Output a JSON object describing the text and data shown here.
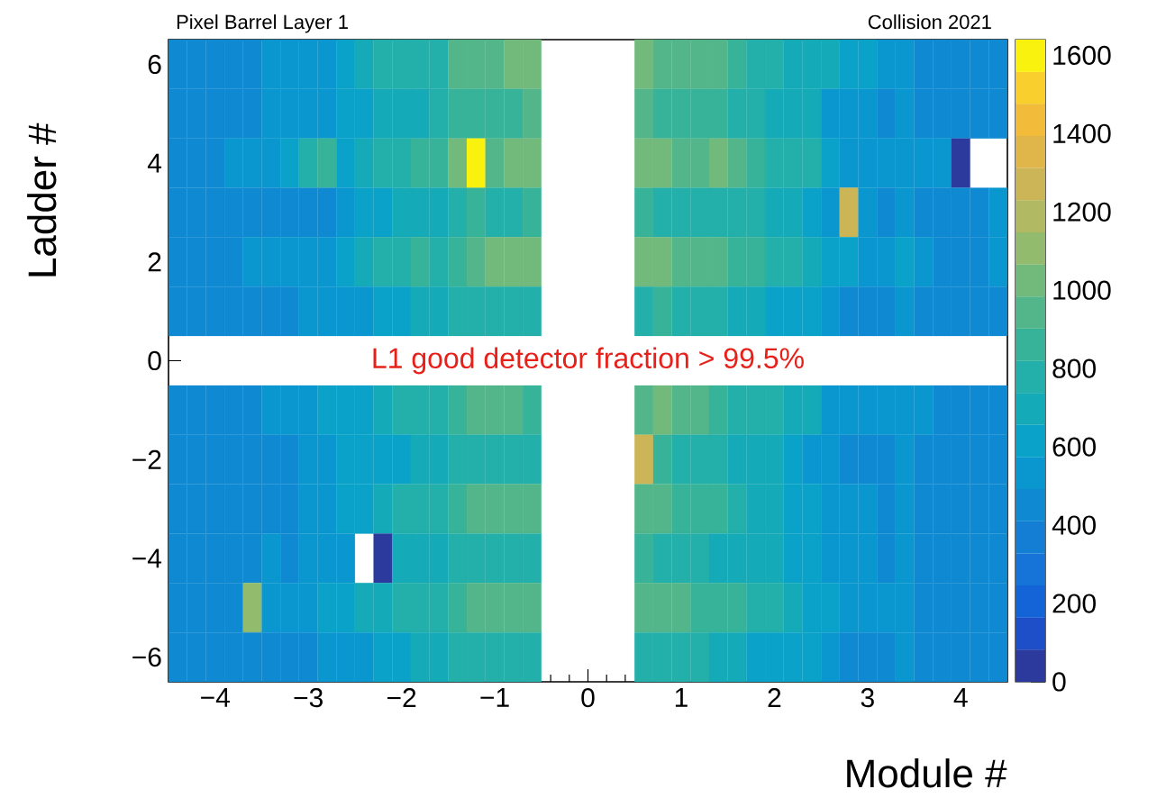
{
  "chart_data": {
    "type": "heatmap",
    "title": "Pixel Barrel Layer 1",
    "subtitle": "Collision 2021",
    "xlabel": "Module #",
    "ylabel": "Ladder #",
    "annotations": [
      "L1 good detector fraction > 99.5%"
    ],
    "categories": [
      null,
      null,
      "−4",
      null,
      null,
      null,
      null,
      "−3",
      null,
      null,
      null,
      null,
      "−2",
      null,
      null,
      null,
      null,
      "−1",
      null,
      null,
      null,
      null,
      "0",
      null,
      null,
      null,
      null,
      "1",
      null,
      null,
      null,
      null,
      "2",
      null,
      null,
      null,
      null,
      "3",
      null,
      null,
      null,
      null,
      "4",
      null,
      null
    ],
    "y_categories": [
      "6",
      null,
      "4",
      null,
      "2",
      null,
      "0",
      null,
      "−2",
      null,
      "−4",
      null,
      "−6"
    ],
    "clim": [
      0,
      1640
    ],
    "cticks": [
      0,
      200,
      400,
      600,
      800,
      1000,
      1200,
      1400,
      1600
    ],
    "cells": [
      [
        460,
        450,
        470,
        470,
        480,
        550,
        500,
        520,
        560,
        620,
        660,
        740,
        800,
        780,
        760,
        920,
        960,
        940,
        1000,
        990,
        null,
        null,
        null,
        null,
        null,
        1030,
        980,
        970,
        980,
        960,
        870,
        800,
        760,
        720,
        680,
        670,
        640,
        600,
        560,
        520,
        490,
        490,
        480,
        480,
        475
      ],
      [
        480,
        440,
        450,
        440,
        480,
        550,
        510,
        520,
        510,
        580,
        650,
        700,
        680,
        700,
        770,
        830,
        880,
        880,
        860,
        920,
        null,
        null,
        null,
        null,
        null,
        910,
        860,
        880,
        880,
        880,
        800,
        760,
        720,
        690,
        670,
        560,
        540,
        500,
        490,
        530,
        480,
        460,
        440,
        460,
        450
      ],
      [
        450,
        450,
        480,
        500,
        520,
        560,
        600,
        740,
        820,
        580,
        730,
        760,
        810,
        840,
        890,
        1000,
        1620,
        980,
        1000,
        1040,
        null,
        null,
        null,
        null,
        null,
        1030,
        1050,
        980,
        970,
        1020,
        910,
        820,
        780,
        760,
        740,
        600,
        570,
        560,
        570,
        570,
        520,
        530,
        30,
        null,
        null
      ],
      [
        430,
        410,
        440,
        430,
        470,
        450,
        450,
        470,
        490,
        540,
        590,
        640,
        680,
        700,
        730,
        810,
        820,
        790,
        800,
        850,
        null,
        null,
        null,
        null,
        null,
        860,
        810,
        800,
        780,
        760,
        780,
        750,
        710,
        680,
        650,
        570,
        1240,
        520,
        480,
        550,
        480,
        440,
        470,
        480,
        510
      ],
      [
        430,
        450,
        440,
        460,
        500,
        510,
        530,
        550,
        570,
        600,
        670,
        740,
        800,
        820,
        810,
        890,
        960,
        1010,
        1020,
        1030,
        null,
        null,
        null,
        null,
        null,
        1000,
        1030,
        960,
        930,
        920,
        880,
        830,
        770,
        740,
        710,
        630,
        590,
        560,
        560,
        620,
        500,
        490,
        470,
        460,
        510
      ],
      [
        440,
        430,
        450,
        460,
        460,
        440,
        480,
        500,
        520,
        560,
        550,
        610,
        650,
        670,
        670,
        760,
        810,
        790,
        760,
        760,
        null,
        null,
        null,
        null,
        null,
        790,
        840,
        800,
        770,
        760,
        720,
        690,
        640,
        600,
        590,
        520,
        480,
        480,
        490,
        530,
        430,
        440,
        430,
        430,
        450
      ],
      [
        null,
        null,
        null,
        null,
        null,
        null,
        null,
        null,
        null,
        null,
        null,
        null,
        null,
        null,
        null,
        null,
        null,
        null,
        null,
        null,
        null,
        null,
        null,
        null,
        null,
        null,
        null,
        null,
        null,
        null,
        null,
        null,
        null,
        null,
        null,
        null,
        null,
        null,
        null,
        null,
        null,
        null,
        null,
        null,
        null
      ],
      [
        460,
        440,
        430,
        440,
        480,
        520,
        500,
        540,
        580,
        630,
        640,
        700,
        760,
        780,
        780,
        870,
        920,
        980,
        960,
        900,
        null,
        null,
        null,
        null,
        null,
        970,
        1000,
        950,
        920,
        870,
        810,
        770,
        740,
        720,
        680,
        570,
        550,
        520,
        500,
        540,
        500,
        470,
        460,
        450,
        490
      ],
      [
        440,
        460,
        430,
        420,
        440,
        480,
        490,
        500,
        520,
        580,
        580,
        630,
        650,
        690,
        720,
        750,
        780,
        780,
        780,
        760,
        null,
        null,
        null,
        null,
        null,
        1300,
        820,
        800,
        780,
        740,
        730,
        700,
        680,
        640,
        560,
        520,
        470,
        460,
        460,
        520,
        440,
        440,
        430,
        420,
        440
      ],
      [
        420,
        440,
        430,
        440,
        480,
        470,
        480,
        500,
        540,
        590,
        610,
        690,
        740,
        760,
        770,
        860,
        920,
        980,
        970,
        930,
        null,
        null,
        null,
        null,
        null,
        910,
        950,
        900,
        860,
        860,
        770,
        720,
        680,
        640,
        600,
        560,
        520,
        500,
        480,
        530,
        440,
        430,
        440,
        430,
        430
      ],
      [
        430,
        430,
        440,
        440,
        480,
        510,
        490,
        520,
        540,
        520,
        null,
        30,
        660,
        680,
        680,
        800,
        810,
        800,
        790,
        760,
        null,
        null,
        null,
        null,
        null,
        860,
        790,
        780,
        760,
        720,
        730,
        690,
        660,
        630,
        600,
        560,
        520,
        500,
        490,
        520,
        460,
        440,
        460,
        470,
        450
      ],
      [
        460,
        440,
        430,
        440,
        1120,
        550,
        530,
        560,
        590,
        600,
        670,
        730,
        760,
        800,
        810,
        870,
        930,
        960,
        960,
        950,
        null,
        null,
        null,
        null,
        null,
        970,
        970,
        930,
        890,
        860,
        840,
        800,
        760,
        720,
        640,
        580,
        550,
        530,
        520,
        550,
        490,
        470,
        460,
        450,
        470
      ],
      [
        450,
        430,
        430,
        440,
        470,
        430,
        470,
        490,
        520,
        560,
        550,
        620,
        650,
        680,
        700,
        740,
        780,
        770,
        750,
        740,
        null,
        null,
        null,
        null,
        null,
        760,
        800,
        770,
        740,
        720,
        660,
        630,
        610,
        590,
        580,
        520,
        480,
        480,
        490,
        520,
        440,
        420,
        420,
        430,
        450
      ]
    ]
  }
}
